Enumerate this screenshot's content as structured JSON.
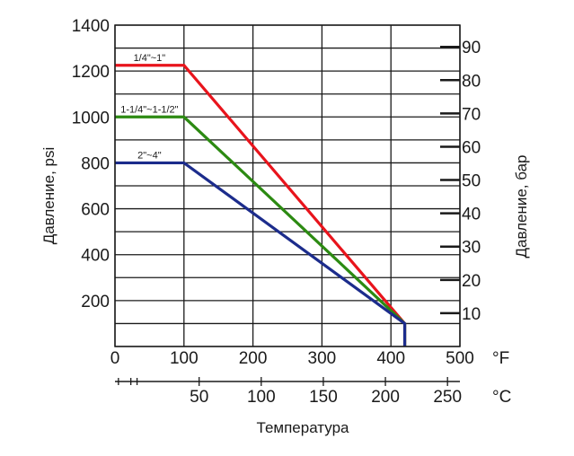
{
  "chart_data": {
    "type": "line",
    "xlabel": "Температура",
    "ylabel_left": "Давление, psi",
    "ylabel_right": "Давление, бар",
    "x_unit_primary": "°F",
    "x_unit_secondary": "°C",
    "xlim": [
      0,
      500
    ],
    "ylim": [
      0,
      1400
    ],
    "grid": true,
    "x_ticks": [
      0,
      100,
      200,
      300,
      400,
      500
    ],
    "x_tick_labels": [
      "0",
      "100",
      "200",
      "300",
      "400",
      "500"
    ],
    "y_ticks": [
      200,
      400,
      600,
      800,
      1000,
      1200,
      1400
    ],
    "y_tick_labels": [
      "200",
      "400",
      "600",
      "800",
      "1000",
      "1200",
      "1400"
    ],
    "y2_ticks": [
      10,
      20,
      30,
      40,
      50,
      60,
      70,
      80,
      90
    ],
    "y2_tick_labels": [
      "10",
      "20",
      "30",
      "40",
      "50",
      "60",
      "70",
      "80",
      "90"
    ],
    "x2_ticks": [
      50,
      100,
      150,
      200,
      250
    ],
    "x2_tick_labels": [
      "50",
      "100",
      "150",
      "200",
      "250"
    ],
    "series": [
      {
        "name": "1/4\"~1\"",
        "color": "#e8141c",
        "x": [
          0,
          100,
          420,
          420
        ],
        "y": [
          1225,
          1225,
          100,
          0
        ]
      },
      {
        "name": "1-1/4\"~1-1/2\"",
        "color": "#2c8a12",
        "x": [
          0,
          100,
          420,
          420
        ],
        "y": [
          1000,
          1000,
          100,
          0
        ]
      },
      {
        "name": "2\"~4\"",
        "color": "#1c2c8c",
        "x": [
          0,
          100,
          420,
          420
        ],
        "y": [
          800,
          800,
          100,
          0
        ]
      }
    ]
  }
}
